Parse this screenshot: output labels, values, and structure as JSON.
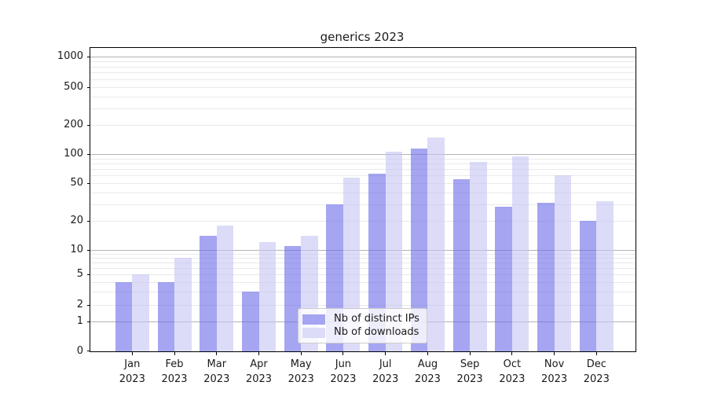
{
  "chart_data": {
    "type": "bar",
    "title": "generics 2023",
    "categories": [
      "Jan",
      "Feb",
      "Mar",
      "Apr",
      "May",
      "Jun",
      "Jul",
      "Aug",
      "Sep",
      "Oct",
      "Nov",
      "Dec"
    ],
    "category_year": "2023",
    "series": [
      {
        "name": "Nb of distinct IPs",
        "color": "#a5a5f1",
        "fill": "rgba(105,105,232,0.6)",
        "values": [
          4,
          4,
          14,
          3,
          11,
          30,
          63,
          114,
          55,
          28,
          31,
          20
        ]
      },
      {
        "name": "Nb of downloads",
        "color": "#dcdcf8",
        "fill": "rgba(197,197,243,0.6)",
        "values": [
          5,
          8,
          18,
          12,
          14,
          57,
          106,
          148,
          83,
          95,
          60,
          32
        ]
      }
    ],
    "y_ticks": [
      0,
      1,
      2,
      5,
      10,
      20,
      50,
      100,
      200,
      500,
      1000
    ],
    "y_scale": "log above 1, linear 0-1",
    "ylim": [
      0,
      1200
    ],
    "grid": true,
    "legend_position": "lower center"
  },
  "colors": {
    "background": "#ffffff",
    "axis": "#000000",
    "grid_major": "#b3b3b3",
    "grid_minor": "#e9e9e9",
    "text": "#1a1a1a",
    "legend_border": "#cccccc"
  }
}
